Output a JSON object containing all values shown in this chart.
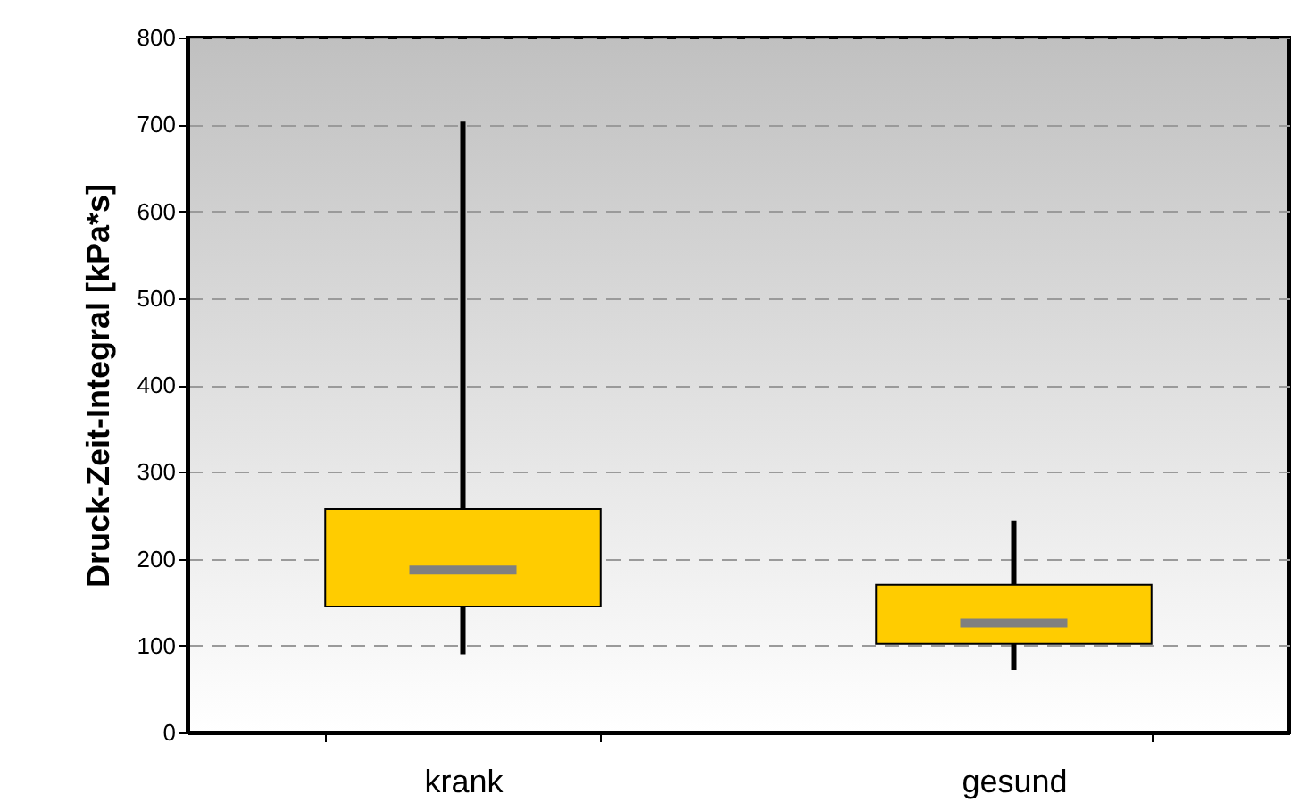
{
  "chart_data": {
    "type": "box",
    "ylabel": "Druck-Zeit-Integral [kPa*s]",
    "categories": [
      "krank",
      "gesund"
    ],
    "boxes": [
      {
        "low": 90,
        "q1": 145,
        "median": 187,
        "q3": 257,
        "high": 703
      },
      {
        "low": 72,
        "q1": 102,
        "median": 126,
        "q3": 170,
        "high": 244
      }
    ],
    "color": "#ffcc00",
    "ylim": [
      0,
      800
    ],
    "yticks": [
      0,
      100,
      200,
      300,
      400,
      500,
      600,
      700,
      800
    ],
    "grid": "y"
  }
}
